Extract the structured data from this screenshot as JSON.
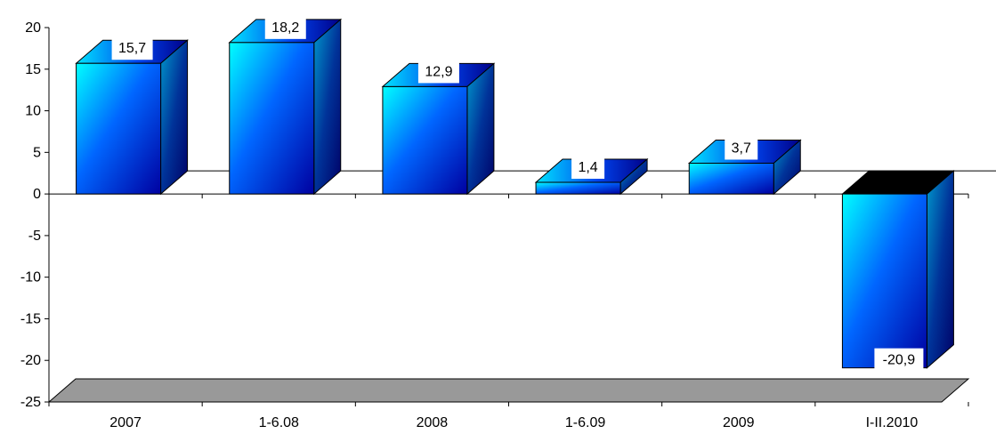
{
  "chart_data": {
    "type": "bar",
    "categories": [
      "2007",
      "1-6.08",
      "2008",
      "1-6.09",
      "2009",
      "I-II.2010"
    ],
    "values": [
      15.7,
      18.2,
      12.9,
      1.4,
      3.7,
      -20.9
    ],
    "data_labels": [
      "15,7",
      "18,2",
      "12,9",
      "1,4",
      "3,7",
      "-20,9"
    ],
    "ylim": [
      -25,
      20
    ],
    "yticks": [
      20,
      15,
      10,
      5,
      0,
      -5,
      -10,
      -15,
      -20,
      -25
    ],
    "ytick_labels": [
      "20",
      "15",
      "10",
      "5",
      "0",
      "-5",
      "-10",
      "-15",
      "-20",
      "-25"
    ],
    "title": "",
    "xlabel": "",
    "ylabel": "",
    "grid": false,
    "legend": false,
    "style": "3d-column",
    "colors": {
      "bar_light": "#00ffff",
      "bar_mid": "#0066ff",
      "bar_dark": "#0000a0",
      "side_light": "#0099cc",
      "side_dark": "#000066",
      "floor": "#999999",
      "negative_top": "#000000",
      "axis": "#000000"
    }
  }
}
